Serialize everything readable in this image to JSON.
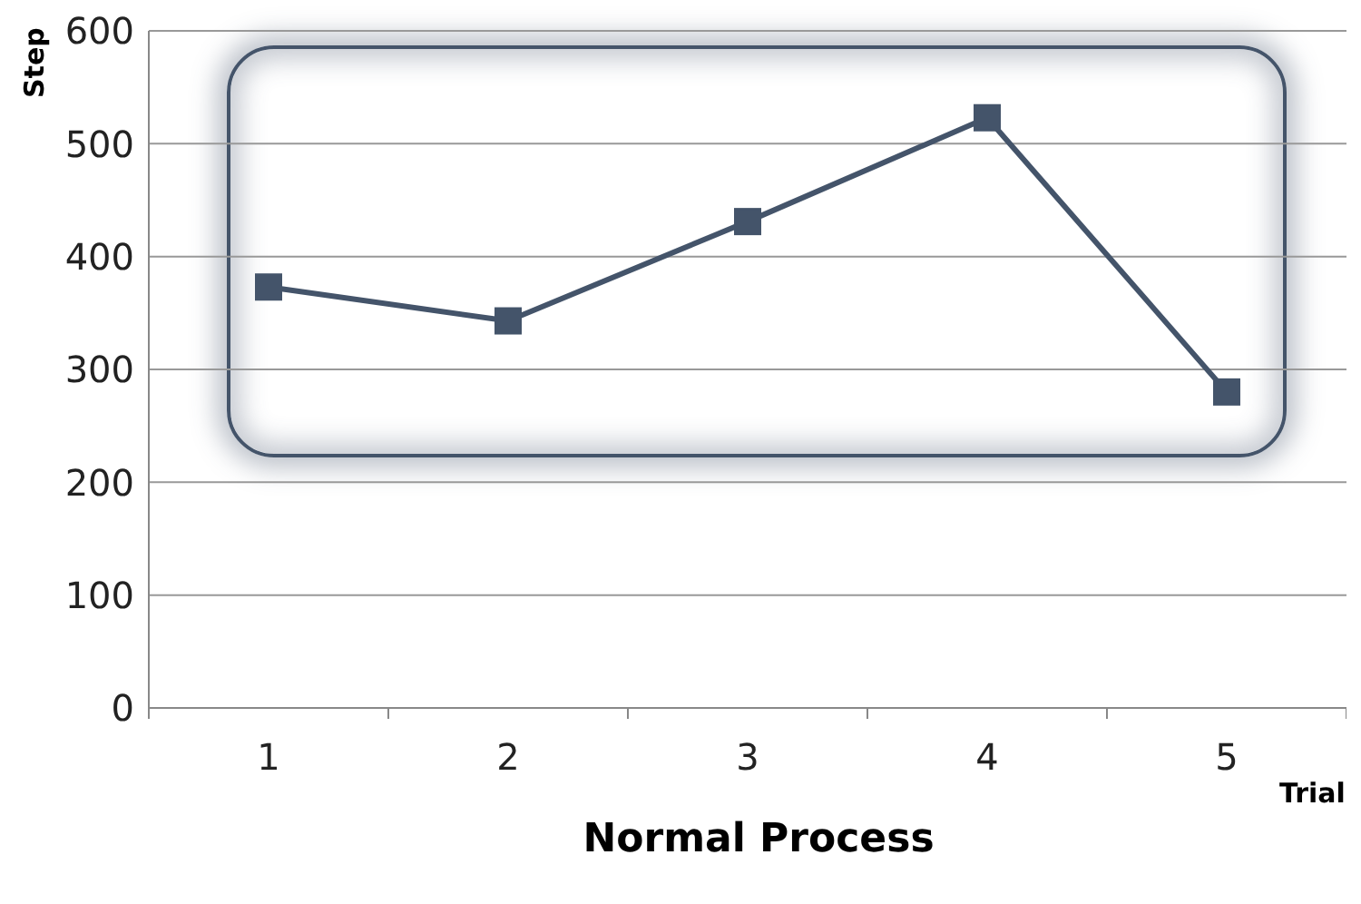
{
  "chart_data": {
    "type": "line",
    "title": "Normal Process",
    "xlabel": "Trial",
    "ylabel": "Step",
    "categories": [
      "1",
      "2",
      "3",
      "4",
      "5"
    ],
    "series": [
      {
        "color": "#44546a",
        "values": [
          373,
          343,
          431,
          523,
          280
        ]
      }
    ],
    "ylim": [
      0,
      600
    ],
    "yticks": [
      0,
      100,
      200,
      300,
      400,
      500,
      600
    ],
    "grid": "y",
    "marker": "square",
    "line_style": "solid"
  }
}
